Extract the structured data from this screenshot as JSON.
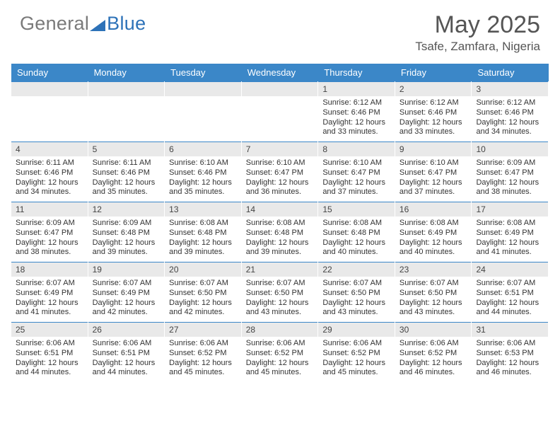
{
  "brand": {
    "part1": "General",
    "part2": "Blue"
  },
  "title": "May 2025",
  "subtitle": "Tsafe, Zamfara, Nigeria",
  "colors": {
    "header_bg": "#3b87c8",
    "header_text": "#ffffff",
    "daynum_bg": "#e9e9e9",
    "cell_border_top": "#3b87c8",
    "text": "#333333",
    "title_color": "#555555"
  },
  "dow": [
    "Sunday",
    "Monday",
    "Tuesday",
    "Wednesday",
    "Thursday",
    "Friday",
    "Saturday"
  ],
  "weeks": [
    [
      null,
      null,
      null,
      null,
      {
        "n": "1",
        "sr": "6:12 AM",
        "ss": "6:46 PM",
        "dl": "12 hours and 33 minutes."
      },
      {
        "n": "2",
        "sr": "6:12 AM",
        "ss": "6:46 PM",
        "dl": "12 hours and 33 minutes."
      },
      {
        "n": "3",
        "sr": "6:12 AM",
        "ss": "6:46 PM",
        "dl": "12 hours and 34 minutes."
      }
    ],
    [
      {
        "n": "4",
        "sr": "6:11 AM",
        "ss": "6:46 PM",
        "dl": "12 hours and 34 minutes."
      },
      {
        "n": "5",
        "sr": "6:11 AM",
        "ss": "6:46 PM",
        "dl": "12 hours and 35 minutes."
      },
      {
        "n": "6",
        "sr": "6:10 AM",
        "ss": "6:46 PM",
        "dl": "12 hours and 35 minutes."
      },
      {
        "n": "7",
        "sr": "6:10 AM",
        "ss": "6:47 PM",
        "dl": "12 hours and 36 minutes."
      },
      {
        "n": "8",
        "sr": "6:10 AM",
        "ss": "6:47 PM",
        "dl": "12 hours and 37 minutes."
      },
      {
        "n": "9",
        "sr": "6:10 AM",
        "ss": "6:47 PM",
        "dl": "12 hours and 37 minutes."
      },
      {
        "n": "10",
        "sr": "6:09 AM",
        "ss": "6:47 PM",
        "dl": "12 hours and 38 minutes."
      }
    ],
    [
      {
        "n": "11",
        "sr": "6:09 AM",
        "ss": "6:47 PM",
        "dl": "12 hours and 38 minutes."
      },
      {
        "n": "12",
        "sr": "6:09 AM",
        "ss": "6:48 PM",
        "dl": "12 hours and 39 minutes."
      },
      {
        "n": "13",
        "sr": "6:08 AM",
        "ss": "6:48 PM",
        "dl": "12 hours and 39 minutes."
      },
      {
        "n": "14",
        "sr": "6:08 AM",
        "ss": "6:48 PM",
        "dl": "12 hours and 39 minutes."
      },
      {
        "n": "15",
        "sr": "6:08 AM",
        "ss": "6:48 PM",
        "dl": "12 hours and 40 minutes."
      },
      {
        "n": "16",
        "sr": "6:08 AM",
        "ss": "6:49 PM",
        "dl": "12 hours and 40 minutes."
      },
      {
        "n": "17",
        "sr": "6:08 AM",
        "ss": "6:49 PM",
        "dl": "12 hours and 41 minutes."
      }
    ],
    [
      {
        "n": "18",
        "sr": "6:07 AM",
        "ss": "6:49 PM",
        "dl": "12 hours and 41 minutes."
      },
      {
        "n": "19",
        "sr": "6:07 AM",
        "ss": "6:49 PM",
        "dl": "12 hours and 42 minutes."
      },
      {
        "n": "20",
        "sr": "6:07 AM",
        "ss": "6:50 PM",
        "dl": "12 hours and 42 minutes."
      },
      {
        "n": "21",
        "sr": "6:07 AM",
        "ss": "6:50 PM",
        "dl": "12 hours and 43 minutes."
      },
      {
        "n": "22",
        "sr": "6:07 AM",
        "ss": "6:50 PM",
        "dl": "12 hours and 43 minutes."
      },
      {
        "n": "23",
        "sr": "6:07 AM",
        "ss": "6:50 PM",
        "dl": "12 hours and 43 minutes."
      },
      {
        "n": "24",
        "sr": "6:07 AM",
        "ss": "6:51 PM",
        "dl": "12 hours and 44 minutes."
      }
    ],
    [
      {
        "n": "25",
        "sr": "6:06 AM",
        "ss": "6:51 PM",
        "dl": "12 hours and 44 minutes."
      },
      {
        "n": "26",
        "sr": "6:06 AM",
        "ss": "6:51 PM",
        "dl": "12 hours and 44 minutes."
      },
      {
        "n": "27",
        "sr": "6:06 AM",
        "ss": "6:52 PM",
        "dl": "12 hours and 45 minutes."
      },
      {
        "n": "28",
        "sr": "6:06 AM",
        "ss": "6:52 PM",
        "dl": "12 hours and 45 minutes."
      },
      {
        "n": "29",
        "sr": "6:06 AM",
        "ss": "6:52 PM",
        "dl": "12 hours and 45 minutes."
      },
      {
        "n": "30",
        "sr": "6:06 AM",
        "ss": "6:52 PM",
        "dl": "12 hours and 46 minutes."
      },
      {
        "n": "31",
        "sr": "6:06 AM",
        "ss": "6:53 PM",
        "dl": "12 hours and 46 minutes."
      }
    ]
  ],
  "labels": {
    "sunrise": "Sunrise: ",
    "sunset": "Sunset: ",
    "daylight": "Daylight: "
  }
}
